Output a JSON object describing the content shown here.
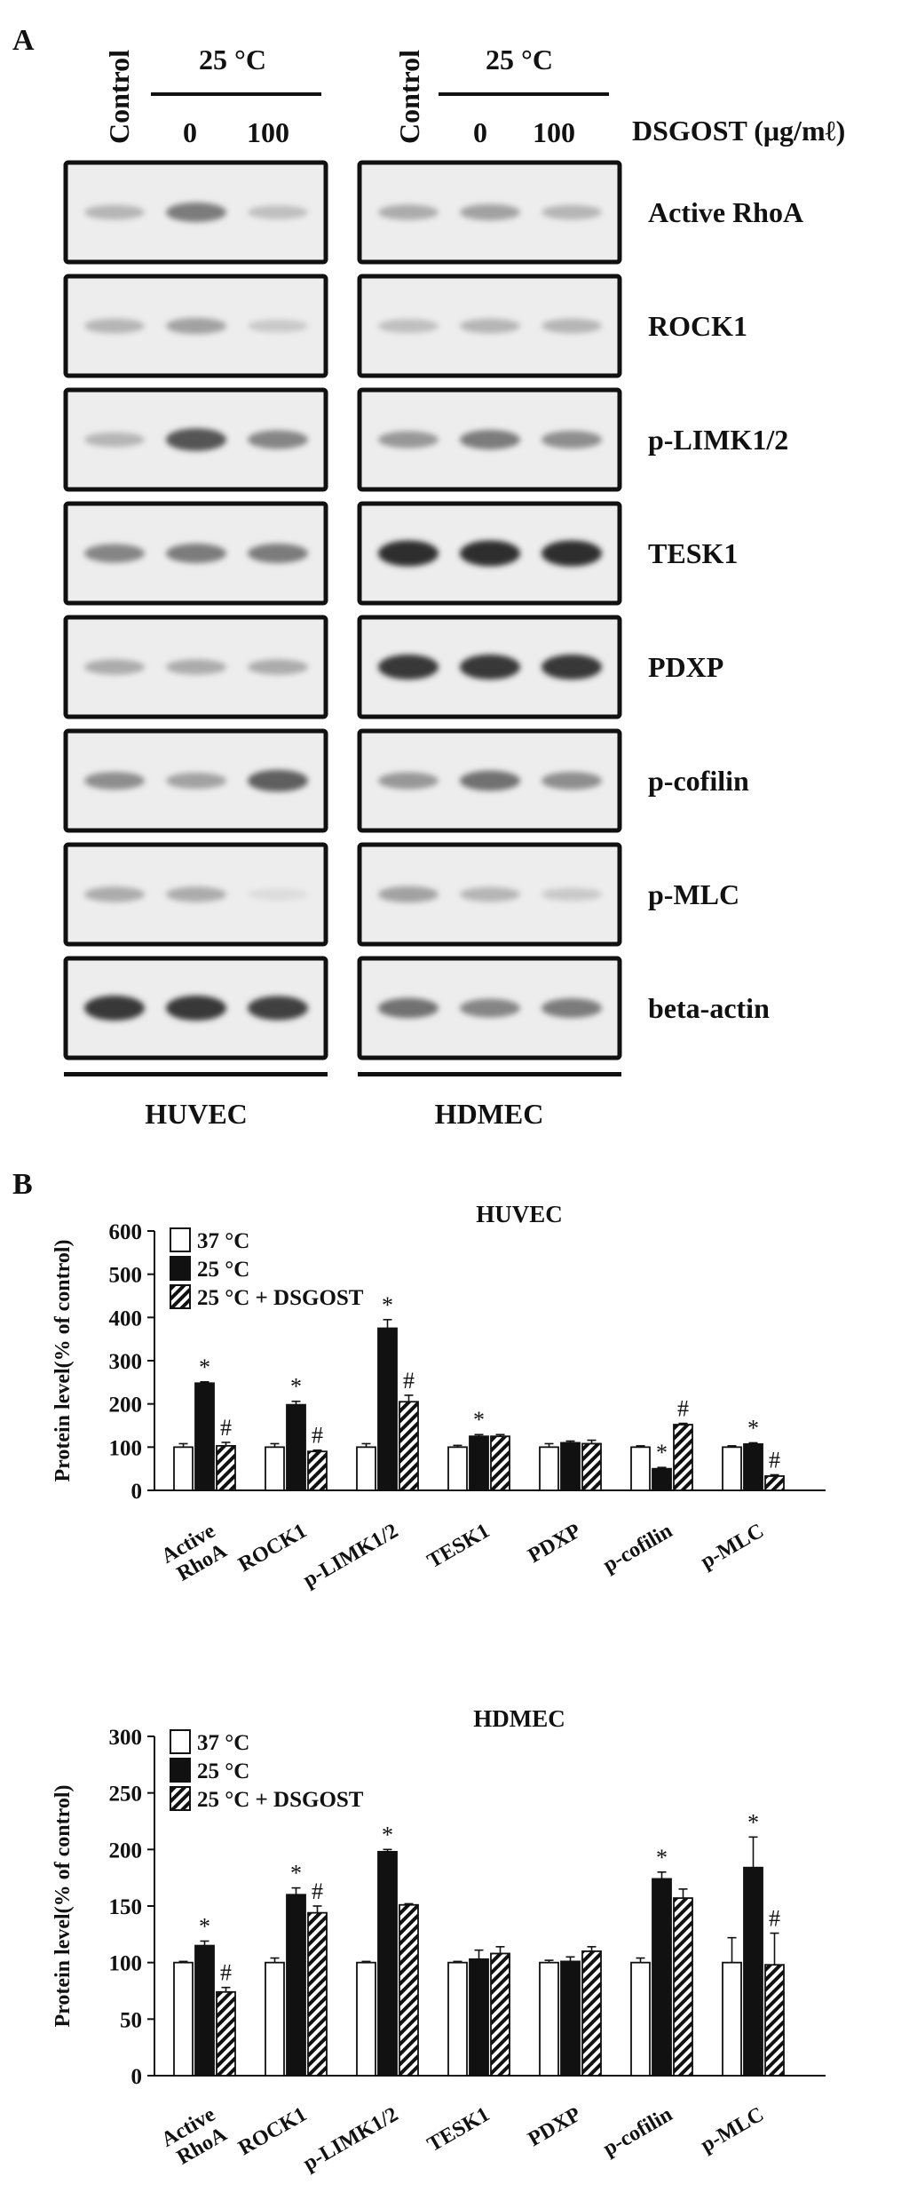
{
  "panelA": {
    "label": "A",
    "treatment_header": "25 °C",
    "control_label": "Control",
    "doses": [
      "0",
      "100"
    ],
    "dose_label": "DSGOST (μg/mℓ)",
    "proteins": [
      "Active RhoA",
      "ROCK1",
      "p-LIMK1/2",
      "TESK1",
      "PDXP",
      "p-cofilin",
      "p-MLC",
      "beta-actin"
    ],
    "cell_lines": [
      "HUVEC",
      "HDMEC"
    ],
    "band_intensity": {
      "HUVEC": [
        [
          0.25,
          0.55,
          0.2
        ],
        [
          0.25,
          0.35,
          0.15
        ],
        [
          0.25,
          0.75,
          0.5
        ],
        [
          0.5,
          0.55,
          0.55
        ],
        [
          0.3,
          0.3,
          0.3
        ],
        [
          0.45,
          0.35,
          0.7
        ],
        [
          0.3,
          0.3,
          0.05
        ],
        [
          0.9,
          0.9,
          0.85
        ]
      ],
      "HDMEC": [
        [
          0.3,
          0.35,
          0.25
        ],
        [
          0.2,
          0.25,
          0.25
        ],
        [
          0.4,
          0.55,
          0.45
        ],
        [
          0.95,
          0.95,
          0.95
        ],
        [
          0.9,
          0.9,
          0.9
        ],
        [
          0.4,
          0.6,
          0.45
        ],
        [
          0.35,
          0.25,
          0.15
        ],
        [
          0.6,
          0.5,
          0.55
        ]
      ]
    }
  },
  "panelB": {
    "label": "B",
    "legend": [
      "37 °C",
      "25 °C",
      "25 °C + DSGOST"
    ]
  },
  "chart_data": [
    {
      "type": "bar",
      "title": "HUVEC",
      "ylabel": "Protein level(% of control)",
      "ylim": [
        0,
        600
      ],
      "yticks": [
        0,
        100,
        200,
        300,
        400,
        500,
        600
      ],
      "categories": [
        "Active RhoA",
        "ROCK1",
        "p-LIMK1/2",
        "TESK1",
        "PDXP",
        "p-cofilin",
        "p-MLC"
      ],
      "series": [
        {
          "name": "37 °C",
          "values": [
            100,
            100,
            100,
            100,
            100,
            100,
            100
          ],
          "errors": [
            8,
            8,
            8,
            4,
            8,
            3,
            3
          ]
        },
        {
          "name": "25 °C",
          "values": [
            248,
            198,
            375,
            125,
            110,
            50,
            107
          ],
          "errors": [
            3,
            8,
            20,
            4,
            4,
            3,
            3
          ]
        },
        {
          "name": "25 °C + DSGOST",
          "values": [
            103,
            90,
            205,
            125,
            108,
            152,
            33
          ],
          "errors": [
            8,
            3,
            15,
            4,
            8,
            3,
            3
          ]
        }
      ],
      "annotations": {
        "star": [
          1,
          1,
          1,
          1,
          null,
          1,
          1
        ],
        "hash": [
          2,
          2,
          2,
          null,
          null,
          2,
          2
        ]
      }
    },
    {
      "type": "bar",
      "title": "HDMEC",
      "ylabel": "Protein level(% of control)",
      "ylim": [
        0,
        300
      ],
      "yticks": [
        0,
        50,
        100,
        150,
        200,
        250,
        300
      ],
      "categories": [
        "Active RhoA",
        "ROCK1",
        "p-LIMK1/2",
        "TESK1",
        "PDXP",
        "p-cofilin",
        "p-MLC"
      ],
      "series": [
        {
          "name": "37 °C",
          "values": [
            100,
            100,
            100,
            100,
            100,
            100,
            100
          ],
          "errors": [
            1,
            4,
            1,
            1,
            2,
            4,
            22
          ]
        },
        {
          "name": "25 °C",
          "values": [
            115,
            160,
            198,
            103,
            101,
            174,
            184
          ],
          "errors": [
            4,
            6,
            2,
            8,
            4,
            6,
            27
          ]
        },
        {
          "name": "25 °C + DSGOST",
          "values": [
            74,
            144,
            151,
            108,
            110,
            157,
            98
          ],
          "errors": [
            4,
            6,
            1,
            6,
            4,
            8,
            28
          ]
        }
      ],
      "annotations": {
        "star": [
          1,
          1,
          1,
          null,
          null,
          1,
          1
        ],
        "hash": [
          2,
          2,
          null,
          null,
          null,
          null,
          2
        ]
      }
    }
  ]
}
